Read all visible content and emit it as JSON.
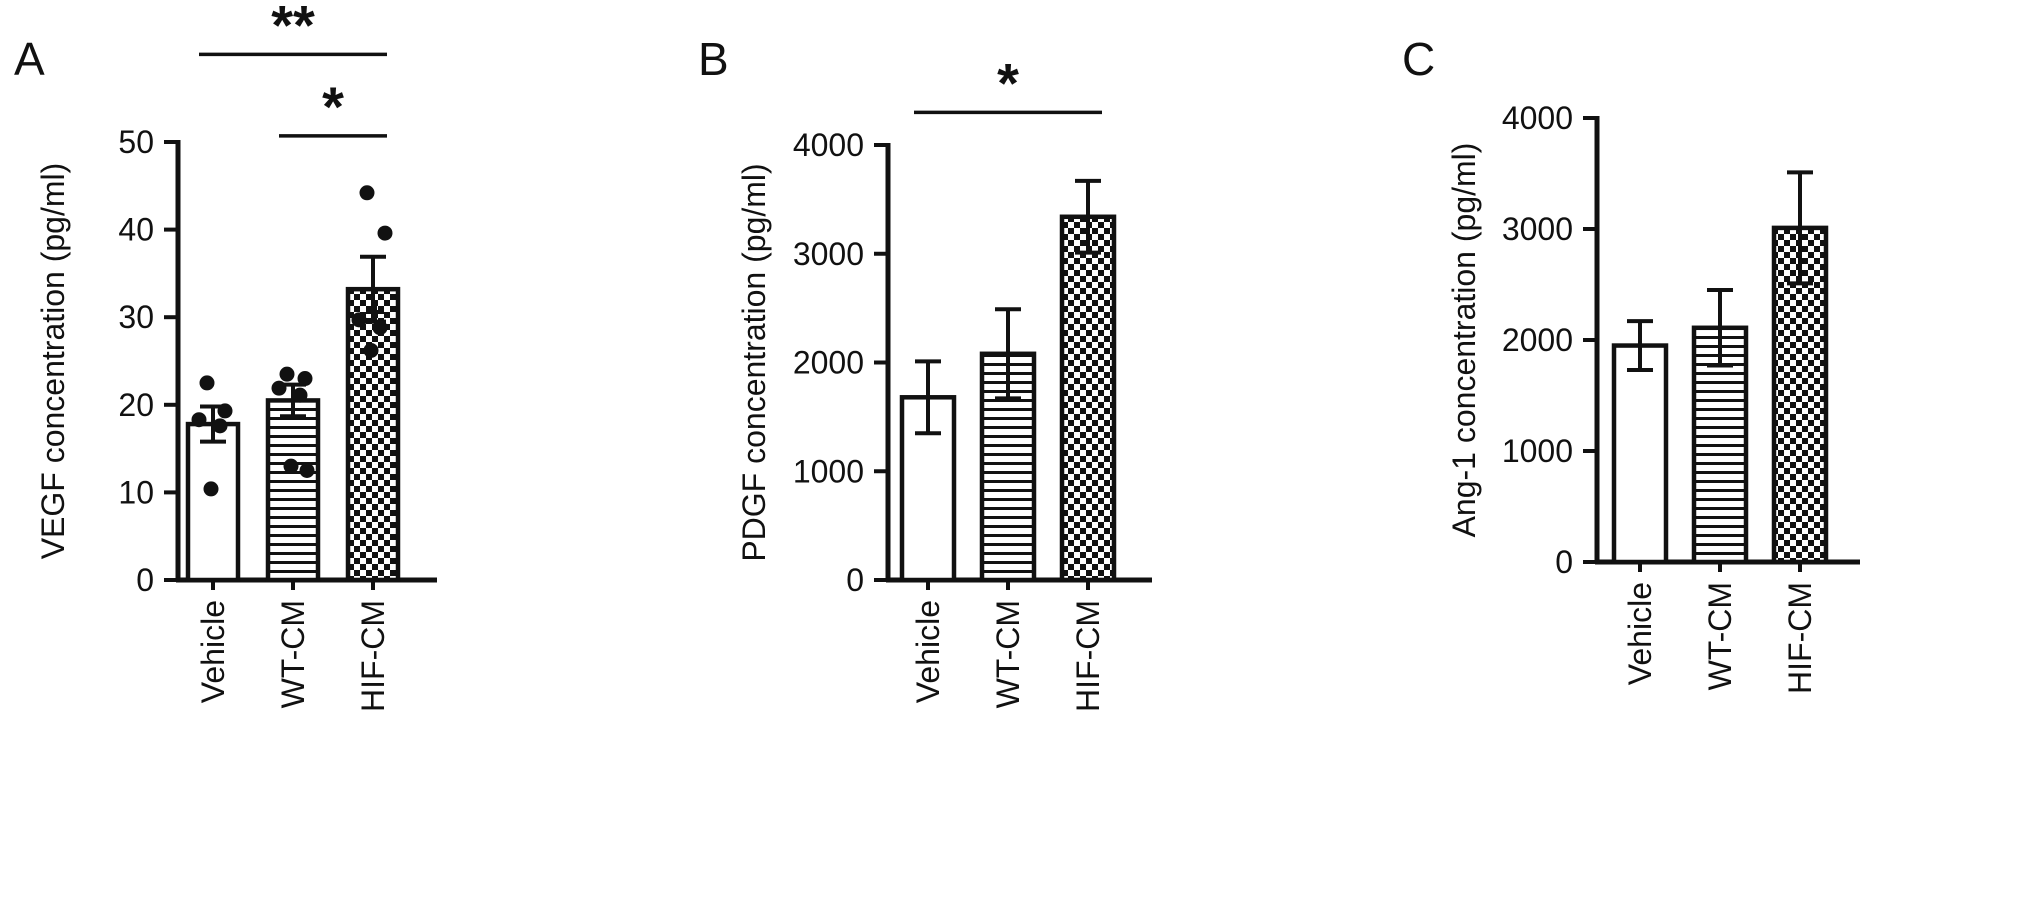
{
  "colors": {
    "ink": "#111111",
    "background": "#ffffff"
  },
  "chart_data": [
    {
      "type": "bar",
      "panel_label": "A",
      "title": "",
      "xlabel": "",
      "ylabel": "VEGF concentration (pg/ml)",
      "categories": [
        "Vehicle",
        "WT-CM",
        "HIF-CM"
      ],
      "values": [
        17.8,
        20.5,
        33.2
      ],
      "errors": [
        2.0,
        1.8,
        3.7
      ],
      "ylim": [
        0,
        50
      ],
      "yticks": [
        0,
        10,
        20,
        30,
        40,
        50
      ],
      "grid": false,
      "legend": "none",
      "bar_styles": [
        "solid",
        "hlines",
        "checker"
      ],
      "scatter": [
        [
          22.5,
          19.3,
          18.3,
          17.6,
          10.4
        ],
        [
          23.5,
          23.0,
          21.9,
          21.1,
          13.0,
          12.5
        ],
        [
          44.2,
          39.6,
          29.7,
          28.8,
          26.2
        ]
      ],
      "plus_markers": [
        [],
        [],
        [
          30.6
        ]
      ],
      "significance": [
        {
          "from": 0,
          "to": 2,
          "label": "**",
          "y": 60
        },
        {
          "from": 1,
          "to": 2,
          "label": "*",
          "y": 50.7
        }
      ]
    },
    {
      "type": "bar",
      "panel_label": "B",
      "title": "",
      "xlabel": "",
      "ylabel": "PDGF concentration (pg/ml)",
      "categories": [
        "Vehicle",
        "WT-CM",
        "HIF-CM"
      ],
      "values": [
        1680,
        2080,
        3340
      ],
      "errors": [
        330,
        410,
        330
      ],
      "ylim": [
        0,
        4000
      ],
      "yticks": [
        0,
        1000,
        2000,
        3000,
        4000
      ],
      "grid": false,
      "legend": "none",
      "bar_styles": [
        "solid",
        "hlines",
        "checker"
      ],
      "scatter": [
        [],
        [],
        []
      ],
      "plus_markers": [
        [],
        [],
        []
      ],
      "significance": [
        {
          "from": 0,
          "to": 2,
          "label": "*",
          "y": 4300
        }
      ]
    },
    {
      "type": "bar",
      "panel_label": "C",
      "title": "",
      "xlabel": "",
      "ylabel": "Ang-1 concentration (pg/ml)",
      "categories": [
        "Vehicle",
        "WT-CM",
        "HIF-CM"
      ],
      "values": [
        1950,
        2110,
        3010
      ],
      "errors": [
        220,
        340,
        500
      ],
      "ylim": [
        0,
        4000
      ],
      "yticks": [
        0,
        1000,
        2000,
        3000,
        4000
      ],
      "grid": false,
      "legend": "none",
      "bar_styles": [
        "solid",
        "hlines",
        "checker"
      ],
      "scatter": [
        [],
        [],
        []
      ],
      "plus_markers": [
        [],
        [],
        []
      ],
      "significance": []
    }
  ]
}
